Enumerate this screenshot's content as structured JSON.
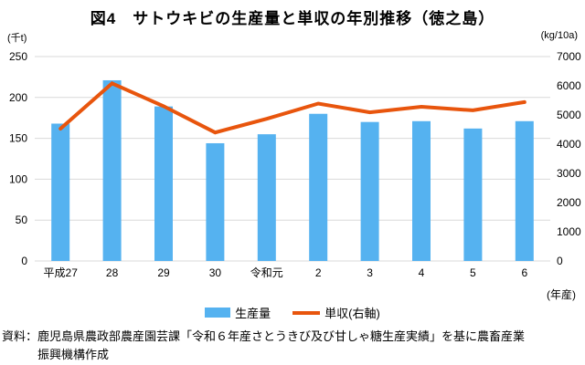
{
  "title": "図4　サトウキビの生産量と単収の年別推移（徳之島）",
  "left_axis_unit": "(千t)",
  "right_axis_unit": "(kg/10a)",
  "x_axis_unit": "(年産)",
  "legend": {
    "bars": "生産量",
    "line": "単収(右軸)"
  },
  "source": {
    "line1": "資料：鹿児島県農政部農産園芸課「令和６年産さとうきび及び甘しゃ糖生産実績」を基に農畜産業",
    "line2": "振興機構作成"
  },
  "colors": {
    "bar": "#55b2f0",
    "line": "#e8550d",
    "grid": "#d9d9d9",
    "text": "#000000"
  },
  "chart_data": {
    "type": "bar+line",
    "title": "図4　サトウキビの生産量と単収の年別推移（徳之島）",
    "categories": [
      "平成27",
      "28",
      "29",
      "30",
      "令和元",
      "2",
      "3",
      "4",
      "5",
      "6"
    ],
    "series": [
      {
        "name": "生産量",
        "type": "bar",
        "axis": "left",
        "unit": "千t",
        "values": [
          168,
          221,
          189,
          144,
          155,
          180,
          170,
          171,
          162,
          171
        ]
      },
      {
        "name": "単収(右軸)",
        "type": "line",
        "axis": "right",
        "unit": "kg/10a",
        "values": [
          4530,
          6080,
          5300,
          4400,
          4870,
          5390,
          5090,
          5280,
          5160,
          5440
        ]
      }
    ],
    "left_axis": {
      "label": "(千t)",
      "min": 0,
      "max": 250,
      "step": 50,
      "ticks": [
        0,
        50,
        100,
        150,
        200,
        250
      ]
    },
    "right_axis": {
      "label": "(kg/10a)",
      "min": 0,
      "max": 7000,
      "step": 1000,
      "ticks": [
        0,
        1000,
        2000,
        3000,
        4000,
        5000,
        6000,
        7000
      ]
    },
    "x_axis_label": "(年産)",
    "grid": "horizontal",
    "legend_position": "bottom"
  }
}
